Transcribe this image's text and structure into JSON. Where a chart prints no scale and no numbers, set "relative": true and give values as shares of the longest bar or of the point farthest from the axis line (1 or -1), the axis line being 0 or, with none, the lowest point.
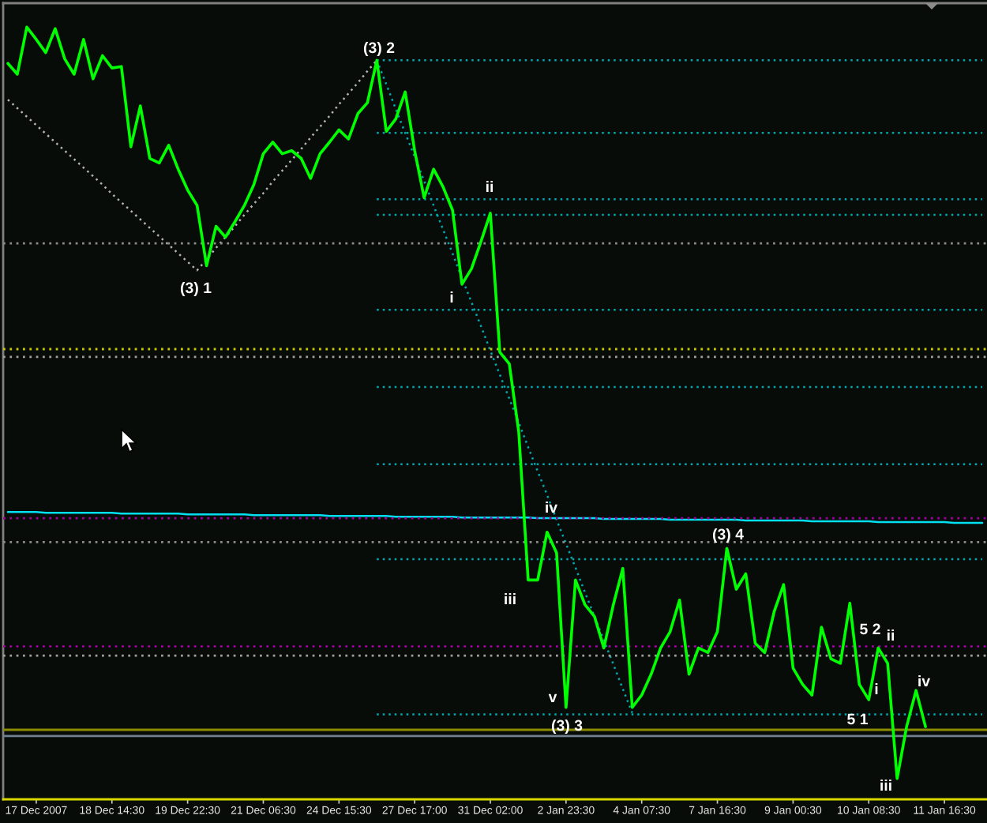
{
  "chart_data": {
    "type": "line",
    "relative": true,
    "tick_labels": "x",
    "categories": [
      null,
      null,
      null,
      "17 Dec 2007",
      null,
      null,
      null,
      null,
      null,
      null,
      null,
      "18 Dec 14:30",
      null,
      null,
      null,
      null,
      null,
      null,
      null,
      "19 Dec 22:30",
      null,
      null,
      null,
      null,
      null,
      null,
      null,
      "21 Dec 06:30",
      null,
      null,
      null,
      null,
      null,
      null,
      null,
      "24 Dec 15:30",
      null,
      null,
      null,
      null,
      null,
      null,
      null,
      "27 Dec 17:00",
      null,
      null,
      null,
      null,
      null,
      null,
      null,
      "31 Dec 02:00",
      null,
      null,
      null,
      null,
      null,
      null,
      null,
      "2 Jan 23:30",
      null,
      null,
      null,
      null,
      null,
      null,
      null,
      "4 Jan 07:30",
      null,
      null,
      null,
      null,
      null,
      null,
      null,
      "7 Jan 16:30",
      null,
      null,
      null,
      null,
      null,
      null,
      null,
      "9 Jan 00:30",
      null,
      null,
      null,
      null,
      null,
      null,
      null,
      "10 Jan 08:30",
      null,
      null,
      null,
      null,
      null,
      null,
      null,
      "11 Jan 16:30",
      null,
      null,
      null,
      null
    ],
    "series": [
      {
        "color": "#00ff00",
        "values": [
          0.953,
          0.939,
          1.0,
          0.984,
          0.967,
          0.998,
          0.959,
          0.939,
          0.984,
          0.933,
          0.963,
          0.947,
          0.949,
          0.845,
          0.898,
          0.83,
          0.824,
          0.847,
          0.816,
          0.789,
          0.769,
          0.691,
          0.742,
          0.728,
          0.748,
          0.769,
          0.796,
          0.836,
          0.851,
          0.836,
          0.84,
          0.83,
          0.804,
          0.836,
          0.851,
          0.867,
          0.855,
          0.888,
          0.902,
          0.957,
          0.865,
          0.881,
          0.916,
          0.84,
          0.779,
          0.816,
          0.793,
          0.763,
          0.667,
          0.687,
          0.722,
          0.759,
          0.579,
          0.564,
          0.476,
          0.284,
          0.284,
          0.346,
          0.319,
          0.119,
          0.284,
          0.252,
          0.237,
          0.196,
          0.252,
          0.299,
          0.119,
          0.135,
          0.162,
          0.196,
          0.217,
          0.258,
          0.162,
          0.196,
          0.19,
          0.217,
          0.325,
          0.272,
          0.292,
          0.202,
          0.19,
          0.243,
          0.278,
          0.17,
          0.149,
          0.135,
          0.223,
          0.182,
          0.176,
          0.254,
          0.149,
          0.129,
          0.196,
          0.176,
          0.027,
          0.094,
          0.141,
          0.094,
          null,
          null,
          null,
          null,
          null,
          null
        ]
      },
      {
        "color": "#b4b4b4",
        "line_style": "dotted",
        "values": [
          0.906,
          0.895,
          0.884,
          0.873,
          0.862,
          0.851,
          0.84,
          0.829,
          0.818,
          0.807,
          0.796,
          0.784,
          0.773,
          0.762,
          0.751,
          0.74,
          0.729,
          0.718,
          0.707,
          0.696,
          0.685,
          0.699,
          0.714,
          0.728,
          0.742,
          0.757,
          0.771,
          0.785,
          0.8,
          0.814,
          0.828,
          0.842,
          0.857,
          0.871,
          0.885,
          0.9,
          0.914,
          0.928,
          0.943,
          0.957,
          null,
          null,
          null,
          null,
          null,
          null,
          null,
          null,
          null,
          null,
          null,
          null,
          null,
          null,
          null,
          null,
          null,
          null,
          null,
          null,
          null,
          null,
          null,
          null,
          null,
          null,
          null,
          null,
          null,
          null,
          null,
          null,
          null,
          null,
          null,
          null,
          null,
          null,
          null,
          null,
          null,
          null,
          null,
          null,
          null,
          null,
          null,
          null,
          null,
          null,
          null,
          null,
          null,
          null,
          null,
          null,
          null,
          null,
          null,
          null,
          null,
          null,
          null,
          null
        ]
      },
      {
        "color": "#00a8b0",
        "line_style": "dotted",
        "values": [
          null,
          null,
          null,
          null,
          null,
          null,
          null,
          null,
          null,
          null,
          null,
          null,
          null,
          null,
          null,
          null,
          null,
          null,
          null,
          null,
          null,
          null,
          null,
          null,
          null,
          null,
          null,
          null,
          null,
          null,
          null,
          null,
          null,
          null,
          null,
          null,
          null,
          null,
          null,
          0.957,
          0.926,
          0.894,
          0.863,
          0.832,
          0.801,
          0.769,
          0.738,
          0.707,
          0.675,
          0.644,
          0.613,
          0.581,
          0.55,
          0.519,
          0.488,
          0.456,
          0.425,
          0.394,
          0.362,
          0.331,
          0.3,
          0.268,
          0.237,
          0.206,
          0.175,
          0.143,
          0.112,
          null,
          null,
          null,
          null,
          null,
          null,
          null,
          null,
          null,
          null,
          null,
          null,
          null,
          null,
          null,
          null,
          null,
          null,
          null,
          null,
          null,
          null,
          null,
          null,
          null,
          null,
          null,
          null,
          null,
          null,
          null,
          null,
          null,
          null,
          null,
          null,
          null
        ]
      },
      {
        "color": "#00e0f0",
        "line_style": "solid",
        "values": [
          0.372,
          0.372,
          0.372,
          0.372,
          0.371,
          0.371,
          0.371,
          0.371,
          0.371,
          0.371,
          0.371,
          0.371,
          0.37,
          0.37,
          0.37,
          0.37,
          0.37,
          0.37,
          0.37,
          0.369,
          0.369,
          0.369,
          0.369,
          0.369,
          0.369,
          0.369,
          0.368,
          0.368,
          0.368,
          0.368,
          0.368,
          0.368,
          0.368,
          0.368,
          0.367,
          0.367,
          0.367,
          0.367,
          0.367,
          0.367,
          0.367,
          0.366,
          0.366,
          0.366,
          0.366,
          0.366,
          0.366,
          0.366,
          0.365,
          0.365,
          0.365,
          0.365,
          0.365,
          0.365,
          0.365,
          0.365,
          0.364,
          0.364,
          0.364,
          0.364,
          0.364,
          0.364,
          0.364,
          0.363,
          0.363,
          0.363,
          0.363,
          0.363,
          0.363,
          0.363,
          0.362,
          0.362,
          0.362,
          0.362,
          0.362,
          0.362,
          0.362,
          0.362,
          0.361,
          0.361,
          0.361,
          0.361,
          0.361,
          0.361,
          0.361,
          0.36,
          0.36,
          0.36,
          0.36,
          0.36,
          0.36,
          0.36,
          0.359,
          0.359,
          0.359,
          0.359,
          0.359,
          0.359,
          0.359,
          0.359,
          0.358,
          0.358,
          0.358,
          0.358
        ]
      },
      {
        "color": "#00a8b0",
        "line_style": "dotted",
        "values": [
          null,
          null,
          null,
          null,
          null,
          null,
          null,
          null,
          null,
          null,
          null,
          null,
          null,
          null,
          null,
          null,
          null,
          null,
          null,
          null,
          null,
          null,
          null,
          null,
          null,
          null,
          null,
          null,
          null,
          null,
          null,
          null,
          null,
          null,
          null,
          null,
          null,
          null,
          null,
          0.957,
          0.957,
          0.957,
          0.957,
          0.957,
          0.957,
          0.957,
          0.957,
          0.957,
          0.957,
          0.957,
          0.957,
          0.957,
          0.957,
          0.957,
          0.957,
          0.957,
          0.957,
          0.957,
          0.957,
          0.957,
          0.957,
          0.957,
          0.957,
          0.957,
          0.957,
          0.957,
          0.957,
          0.957,
          0.957,
          0.957,
          0.957,
          0.957,
          0.957,
          0.957,
          0.957,
          0.957,
          0.957,
          0.957,
          0.957,
          0.957,
          0.957,
          0.957,
          0.957,
          0.957,
          0.957,
          0.957,
          0.957,
          0.957,
          0.957,
          0.957,
          0.957,
          0.957,
          0.957,
          0.957,
          0.957,
          0.957,
          0.957,
          0.957,
          0.957,
          0.957,
          0.957,
          0.957,
          0.957,
          0.957
        ]
      },
      {
        "color": "#00a8b0",
        "line_style": "dotted",
        "values": [
          null,
          null,
          null,
          null,
          null,
          null,
          null,
          null,
          null,
          null,
          null,
          null,
          null,
          null,
          null,
          null,
          null,
          null,
          null,
          null,
          null,
          null,
          null,
          null,
          null,
          null,
          null,
          null,
          null,
          null,
          null,
          null,
          null,
          null,
          null,
          null,
          null,
          null,
          null,
          0.863,
          0.863,
          0.863,
          0.863,
          0.863,
          0.863,
          0.863,
          0.863,
          0.863,
          0.863,
          0.863,
          0.863,
          0.863,
          0.863,
          0.863,
          0.863,
          0.863,
          0.863,
          0.863,
          0.863,
          0.863,
          0.863,
          0.863,
          0.863,
          0.863,
          0.863,
          0.863,
          0.863,
          0.863,
          0.863,
          0.863,
          0.863,
          0.863,
          0.863,
          0.863,
          0.863,
          0.863,
          0.863,
          0.863,
          0.863,
          0.863,
          0.863,
          0.863,
          0.863,
          0.863,
          0.863,
          0.863,
          0.863,
          0.863,
          0.863,
          0.863,
          0.863,
          0.863,
          0.863,
          0.863,
          0.863,
          0.863,
          0.863,
          0.863,
          0.863,
          0.863,
          0.863,
          0.863,
          0.863,
          0.863
        ]
      },
      {
        "color": "#00a8b0",
        "line_style": "dotted",
        "values": [
          null,
          null,
          null,
          null,
          null,
          null,
          null,
          null,
          null,
          null,
          null,
          null,
          null,
          null,
          null,
          null,
          null,
          null,
          null,
          null,
          null,
          null,
          null,
          null,
          null,
          null,
          null,
          null,
          null,
          null,
          null,
          null,
          null,
          null,
          null,
          null,
          null,
          null,
          null,
          0.777,
          0.777,
          0.777,
          0.777,
          0.777,
          0.777,
          0.777,
          0.777,
          0.777,
          0.777,
          0.777,
          0.777,
          0.777,
          0.777,
          0.777,
          0.777,
          0.777,
          0.777,
          0.777,
          0.777,
          0.777,
          0.777,
          0.777,
          0.777,
          0.777,
          0.777,
          0.777,
          0.777,
          0.777,
          0.777,
          0.777,
          0.777,
          0.777,
          0.777,
          0.777,
          0.777,
          0.777,
          0.777,
          0.777,
          0.777,
          0.777,
          0.777,
          0.777,
          0.777,
          0.777,
          0.777,
          0.777,
          0.777,
          0.777,
          0.777,
          0.777,
          0.777,
          0.777,
          0.777,
          0.777,
          0.777,
          0.777,
          0.777,
          0.777,
          0.777,
          0.777,
          0.777,
          0.777,
          0.777,
          0.777
        ]
      },
      {
        "color": "#00a8b0",
        "line_style": "dotted",
        "values": [
          null,
          null,
          null,
          null,
          null,
          null,
          null,
          null,
          null,
          null,
          null,
          null,
          null,
          null,
          null,
          null,
          null,
          null,
          null,
          null,
          null,
          null,
          null,
          null,
          null,
          null,
          null,
          null,
          null,
          null,
          null,
          null,
          null,
          null,
          null,
          null,
          null,
          null,
          null,
          0.757,
          0.757,
          0.757,
          0.757,
          0.757,
          0.757,
          0.757,
          0.757,
          0.757,
          0.757,
          0.757,
          0.757,
          0.757,
          0.757,
          0.757,
          0.757,
          0.757,
          0.757,
          0.757,
          0.757,
          0.757,
          0.757,
          0.757,
          0.757,
          0.757,
          0.757,
          0.757,
          0.757,
          0.757,
          0.757,
          0.757,
          0.757,
          0.757,
          0.757,
          0.757,
          0.757,
          0.757,
          0.757,
          0.757,
          0.757,
          0.757,
          0.757,
          0.757,
          0.757,
          0.757,
          0.757,
          0.757,
          0.757,
          0.757,
          0.757,
          0.757,
          0.757,
          0.757,
          0.757,
          0.757,
          0.757,
          0.757,
          0.757,
          0.757,
          0.757,
          0.757,
          0.757,
          0.757,
          0.757,
          0.757
        ]
      },
      {
        "color": "#00a8b0",
        "line_style": "dotted",
        "values": [
          null,
          null,
          null,
          null,
          null,
          null,
          null,
          null,
          null,
          null,
          null,
          null,
          null,
          null,
          null,
          null,
          null,
          null,
          null,
          null,
          null,
          null,
          null,
          null,
          null,
          null,
          null,
          null,
          null,
          null,
          null,
          null,
          null,
          null,
          null,
          null,
          null,
          null,
          null,
          0.634,
          0.634,
          0.634,
          0.634,
          0.634,
          0.634,
          0.634,
          0.634,
          0.634,
          0.634,
          0.634,
          0.634,
          0.634,
          0.634,
          0.634,
          0.634,
          0.634,
          0.634,
          0.634,
          0.634,
          0.634,
          0.634,
          0.634,
          0.634,
          0.634,
          0.634,
          0.634,
          0.634,
          0.634,
          0.634,
          0.634,
          0.634,
          0.634,
          0.634,
          0.634,
          0.634,
          0.634,
          0.634,
          0.634,
          0.634,
          0.634,
          0.634,
          0.634,
          0.634,
          0.634,
          0.634,
          0.634,
          0.634,
          0.634,
          0.634,
          0.634,
          0.634,
          0.634,
          0.634,
          0.634,
          0.634,
          0.634,
          0.634,
          0.634,
          0.634,
          0.634,
          0.634,
          0.634,
          0.634,
          0.634
        ]
      },
      {
        "color": "#00a8b0",
        "line_style": "dotted",
        "values": [
          null,
          null,
          null,
          null,
          null,
          null,
          null,
          null,
          null,
          null,
          null,
          null,
          null,
          null,
          null,
          null,
          null,
          null,
          null,
          null,
          null,
          null,
          null,
          null,
          null,
          null,
          null,
          null,
          null,
          null,
          null,
          null,
          null,
          null,
          null,
          null,
          null,
          null,
          null,
          0.534,
          0.534,
          0.534,
          0.534,
          0.534,
          0.534,
          0.534,
          0.534,
          0.534,
          0.534,
          0.534,
          0.534,
          0.534,
          0.534,
          0.534,
          0.534,
          0.534,
          0.534,
          0.534,
          0.534,
          0.534,
          0.534,
          0.534,
          0.534,
          0.534,
          0.534,
          0.534,
          0.534,
          0.534,
          0.534,
          0.534,
          0.534,
          0.534,
          0.534,
          0.534,
          0.534,
          0.534,
          0.534,
          0.534,
          0.534,
          0.534,
          0.534,
          0.534,
          0.534,
          0.534,
          0.534,
          0.534,
          0.534,
          0.534,
          0.534,
          0.534,
          0.534,
          0.534,
          0.534,
          0.534,
          0.534,
          0.534,
          0.534,
          0.534,
          0.534,
          0.534,
          0.534,
          0.534,
          0.534,
          0.534
        ]
      },
      {
        "color": "#00a8b0",
        "line_style": "dotted",
        "values": [
          null,
          null,
          null,
          null,
          null,
          null,
          null,
          null,
          null,
          null,
          null,
          null,
          null,
          null,
          null,
          null,
          null,
          null,
          null,
          null,
          null,
          null,
          null,
          null,
          null,
          null,
          null,
          null,
          null,
          null,
          null,
          null,
          null,
          null,
          null,
          null,
          null,
          null,
          null,
          0.434,
          0.434,
          0.434,
          0.434,
          0.434,
          0.434,
          0.434,
          0.434,
          0.434,
          0.434,
          0.434,
          0.434,
          0.434,
          0.434,
          0.434,
          0.434,
          0.434,
          0.434,
          0.434,
          0.434,
          0.434,
          0.434,
          0.434,
          0.434,
          0.434,
          0.434,
          0.434,
          0.434,
          0.434,
          0.434,
          0.434,
          0.434,
          0.434,
          0.434,
          0.434,
          0.434,
          0.434,
          0.434,
          0.434,
          0.434,
          0.434,
          0.434,
          0.434,
          0.434,
          0.434,
          0.434,
          0.434,
          0.434,
          0.434,
          0.434,
          0.434,
          0.434,
          0.434,
          0.434,
          0.434,
          0.434,
          0.434,
          0.434,
          0.434,
          0.434,
          0.434,
          0.434,
          0.434,
          0.434,
          0.434
        ]
      },
      {
        "color": "#00a8b0",
        "line_style": "dotted",
        "values": [
          null,
          null,
          null,
          null,
          null,
          null,
          null,
          null,
          null,
          null,
          null,
          null,
          null,
          null,
          null,
          null,
          null,
          null,
          null,
          null,
          null,
          null,
          null,
          null,
          null,
          null,
          null,
          null,
          null,
          null,
          null,
          null,
          null,
          null,
          null,
          null,
          null,
          null,
          null,
          0.311,
          0.311,
          0.311,
          0.311,
          0.311,
          0.311,
          0.311,
          0.311,
          0.311,
          0.311,
          0.311,
          0.311,
          0.311,
          0.311,
          0.311,
          0.311,
          0.311,
          0.311,
          0.311,
          0.311,
          0.311,
          0.311,
          0.311,
          0.311,
          0.311,
          0.311,
          0.311,
          0.311,
          0.311,
          0.311,
          0.311,
          0.311,
          0.311,
          0.311,
          0.311,
          0.311,
          0.311,
          0.311,
          0.311,
          0.311,
          0.311,
          0.311,
          0.311,
          0.311,
          0.311,
          0.311,
          0.311,
          0.311,
          0.311,
          0.311,
          0.311,
          0.311,
          0.311,
          0.311,
          0.311,
          0.311,
          0.311,
          0.311,
          0.311,
          0.311,
          0.311,
          0.311,
          0.311,
          0.311,
          0.311
        ]
      },
      {
        "color": "#00a8b0",
        "line_style": "dotted",
        "values": [
          null,
          null,
          null,
          null,
          null,
          null,
          null,
          null,
          null,
          null,
          null,
          null,
          null,
          null,
          null,
          null,
          null,
          null,
          null,
          null,
          null,
          null,
          null,
          null,
          null,
          null,
          null,
          null,
          null,
          null,
          null,
          null,
          null,
          null,
          null,
          null,
          null,
          null,
          null,
          0.11,
          0.11,
          0.11,
          0.11,
          0.11,
          0.11,
          0.11,
          0.11,
          0.11,
          0.11,
          0.11,
          0.11,
          0.11,
          0.11,
          0.11,
          0.11,
          0.11,
          0.11,
          0.11,
          0.11,
          0.11,
          0.11,
          0.11,
          0.11,
          0.11,
          0.11,
          0.11,
          0.11,
          0.11,
          0.11,
          0.11,
          0.11,
          0.11,
          0.11,
          0.11,
          0.11,
          0.11,
          0.11,
          0.11,
          0.11,
          0.11,
          0.11,
          0.11,
          0.11,
          0.11,
          0.11,
          0.11,
          0.11,
          0.11,
          0.11,
          0.11,
          0.11,
          0.11,
          0.11,
          0.11,
          0.11,
          0.11,
          0.11,
          0.11,
          0.11,
          0.11,
          0.11,
          0.11,
          0.11,
          0.11
        ]
      }
    ],
    "ref_lines": [
      {
        "axis": "y",
        "value": 0.72,
        "color": "#8c8c8c",
        "line_style": "dotted"
      },
      {
        "axis": "y",
        "value": 0.583,
        "color": "#c8c800",
        "line_style": "dotted"
      },
      {
        "axis": "y",
        "value": 0.573,
        "color": "#a0a0a0",
        "line_style": "dotted"
      },
      {
        "axis": "y",
        "value": 0.364,
        "color": "#a000a0",
        "line_style": "dotted"
      },
      {
        "axis": "y",
        "value": 0.333,
        "color": "#8c8c8c",
        "line_style": "dotted"
      },
      {
        "axis": "y",
        "value": 0.198,
        "color": "#a000a0",
        "line_style": "dotted"
      },
      {
        "axis": "y",
        "value": 0.186,
        "color": "#a0a0a0",
        "line_style": "dotted"
      },
      {
        "axis": "y",
        "value": 0.09,
        "color": "#8c8c00",
        "line_style": "solid"
      },
      {
        "axis": "y",
        "value": 0.082,
        "color": "#708090",
        "line_style": "solid"
      }
    ],
    "annotations": [
      "(3) 1",
      "(3) 2",
      "i",
      "ii",
      "iii",
      "iv",
      "v",
      "(3) 3",
      "(3) 4",
      "5 1",
      "5 2",
      "i",
      "iii",
      "ii",
      "iv"
    ]
  }
}
